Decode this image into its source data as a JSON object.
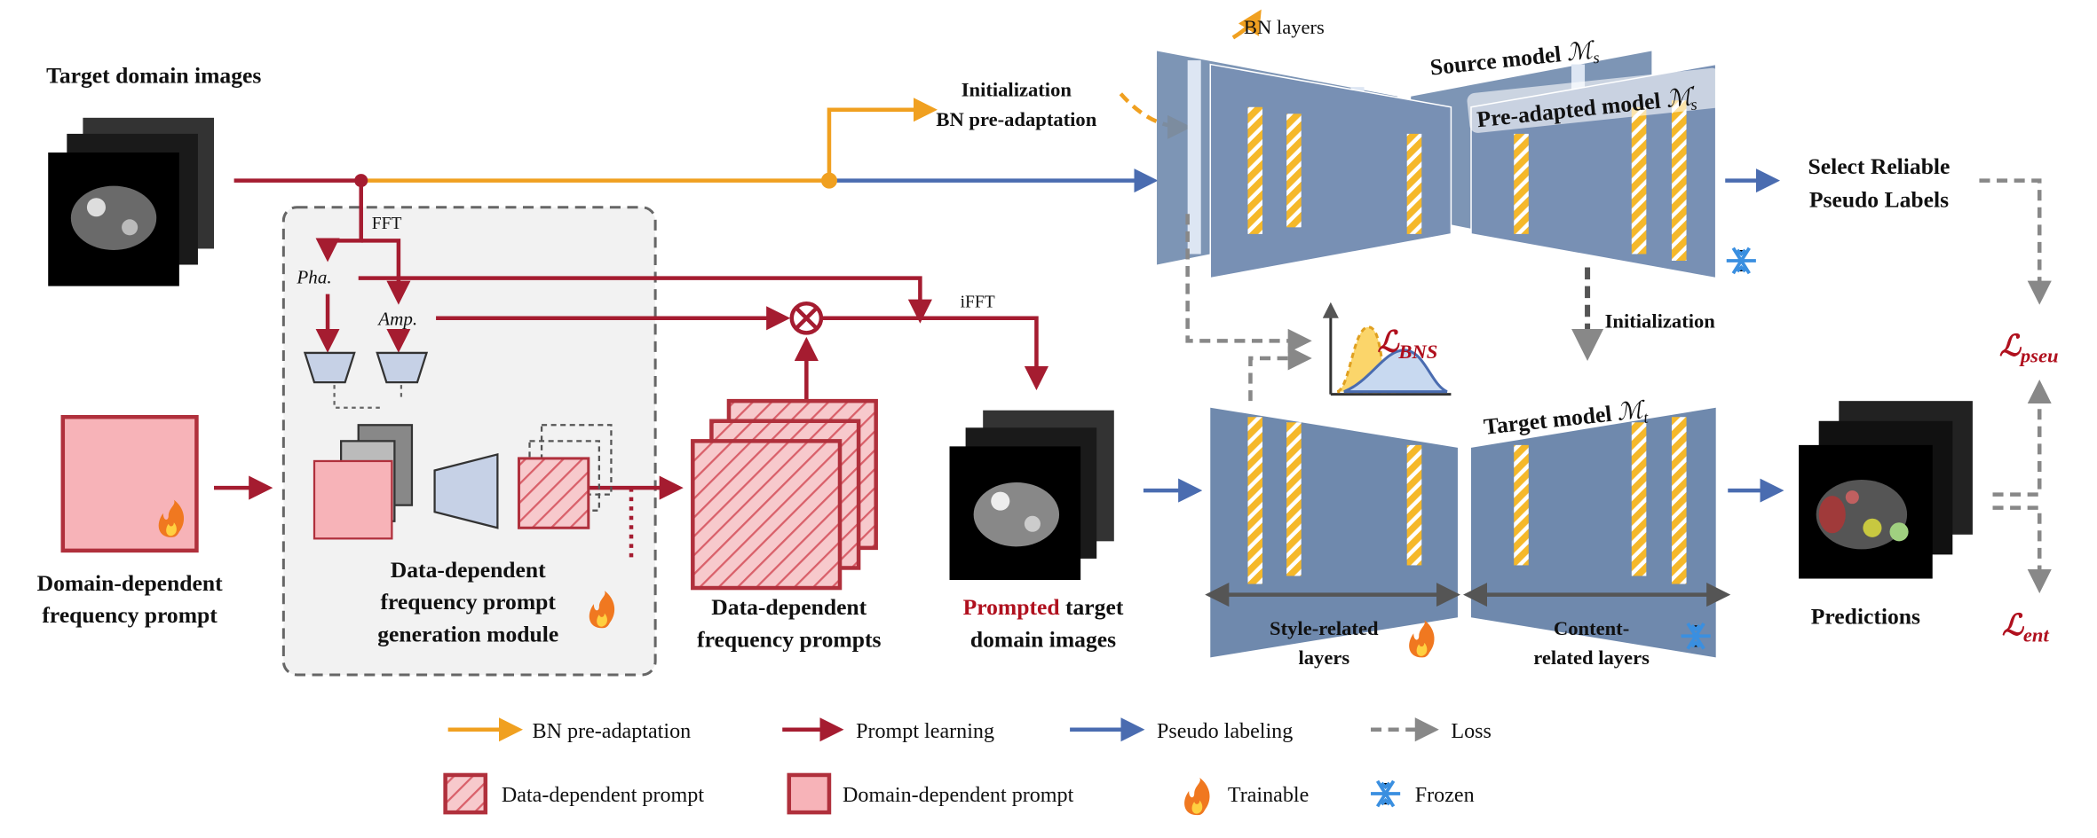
{
  "input": {
    "title": "Target domain images"
  },
  "ops": {
    "fft": "FFT",
    "phase": "Pha.",
    "amplitude": "Amp.",
    "ifft": "iFFT"
  },
  "init_top": {
    "line1": "Initialization",
    "line2": "BN pre-adaptation"
  },
  "bn_layers": "BN layers",
  "source_model": {
    "label": "Source model",
    "symbol": "ℳ",
    "subscript": "s"
  },
  "preadapted_model": {
    "label": "Pre-adapted model",
    "symbol": "ℳ",
    "superscript": "′",
    "subscript": "s"
  },
  "select": {
    "line1": "Select Reliable",
    "line2": "Pseudo Labels"
  },
  "init_mid": "Initialization",
  "losses": {
    "bns": {
      "symbol": "ℒ",
      "subscript": "BNS"
    },
    "pseu": {
      "symbol": "ℒ",
      "subscript": "pseu"
    },
    "ent": {
      "symbol": "ℒ",
      "subscript": "ent"
    }
  },
  "target_model": {
    "label": "Target model",
    "symbol": "ℳ",
    "subscript": "t"
  },
  "domain_prompt": {
    "line1": "Domain-dependent",
    "line2": "frequency prompt"
  },
  "module": {
    "line1": "Data-dependent",
    "line2": "frequency prompt",
    "line3": "generation module"
  },
  "data_prompts": {
    "line1": "Data-dependent",
    "line2": "frequency prompts"
  },
  "prompted": {
    "highlight": "Prompted",
    "line1": "target",
    "line2": "domain images"
  },
  "style_layers": {
    "line1": "Style-related",
    "line2": "layers"
  },
  "content_layers": {
    "line1": "Content-",
    "line2": "related layers"
  },
  "predictions": "Predictions",
  "legend": {
    "bn": "BN pre-adaptation",
    "prompt": "Prompt learning",
    "pseudo": "Pseudo labeling",
    "loss": "Loss",
    "data_prompt": "Data-dependent prompt",
    "domain_prompt": "Domain-dependent prompt",
    "trainable": "Trainable",
    "frozen": "Frozen"
  }
}
